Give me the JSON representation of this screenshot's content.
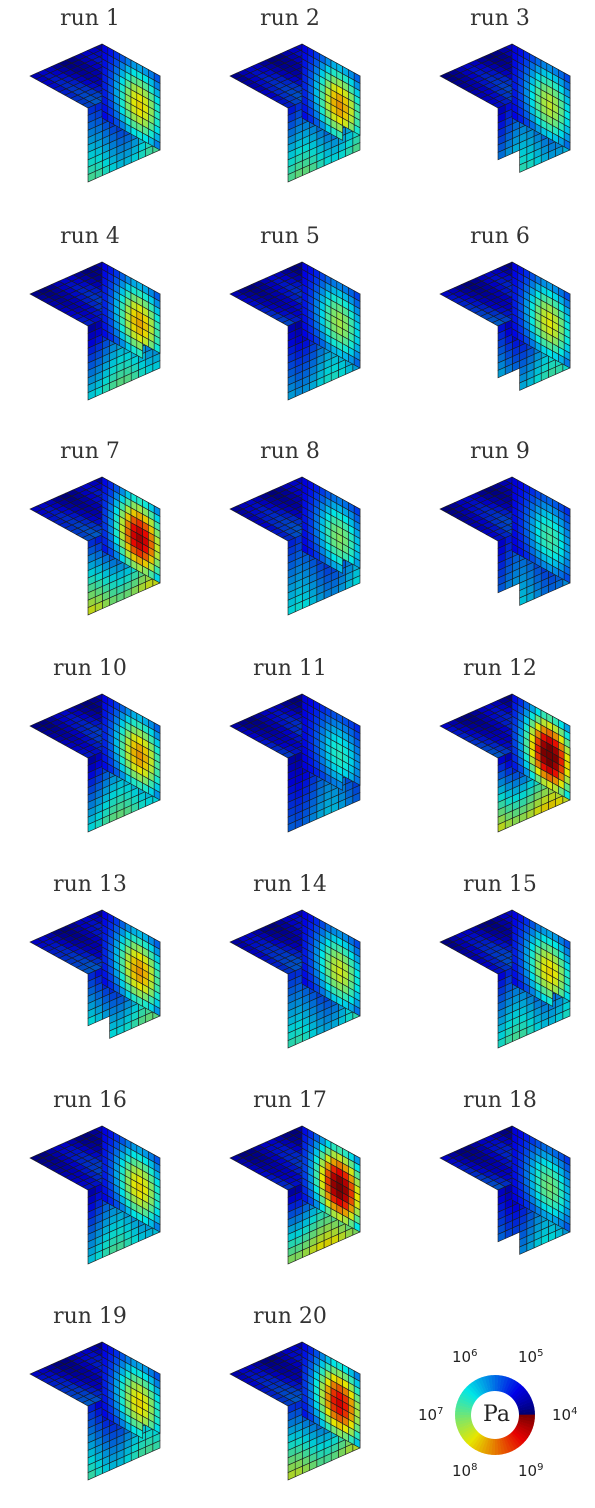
{
  "panels": [
    {
      "title": "run 1"
    },
    {
      "title": "run 2"
    },
    {
      "title": "run 3"
    },
    {
      "title": "run 4"
    },
    {
      "title": "run 5"
    },
    {
      "title": "run 6"
    },
    {
      "title": "run 7"
    },
    {
      "title": "run 8"
    },
    {
      "title": "run 9"
    },
    {
      "title": "run 10"
    },
    {
      "title": "run 11"
    },
    {
      "title": "run 12"
    },
    {
      "title": "run 13"
    },
    {
      "title": "run 14"
    },
    {
      "title": "run 15"
    },
    {
      "title": "run 16"
    },
    {
      "title": "run 17"
    },
    {
      "title": "run 18"
    },
    {
      "title": "run 19"
    },
    {
      "title": "run 20"
    }
  ],
  "legend": {
    "unit": "Pa",
    "ticks": [
      {
        "base": "10",
        "exp": "6"
      },
      {
        "base": "10",
        "exp": "5"
      },
      {
        "base": "10",
        "exp": "7"
      },
      {
        "base": "10",
        "exp": "4"
      },
      {
        "base": "10",
        "exp": "8"
      },
      {
        "base": "10",
        "exp": "9"
      }
    ]
  },
  "colors": {
    "low": "#00008f",
    "mid": "#40c080",
    "high": "#8f0000"
  }
}
